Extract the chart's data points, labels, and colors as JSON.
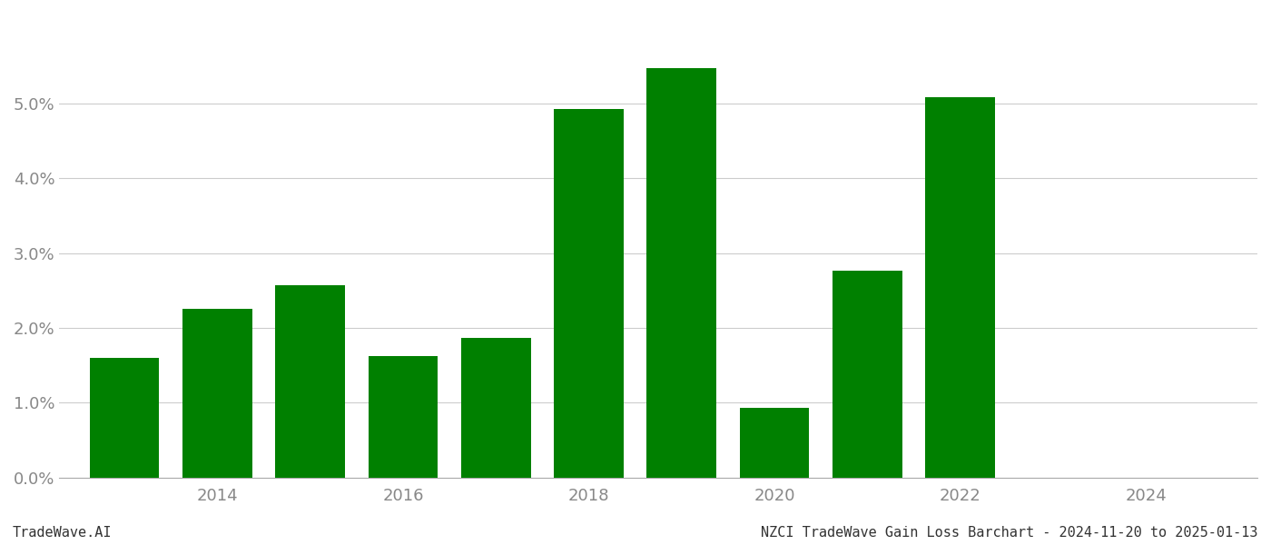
{
  "years": [
    2013,
    2014,
    2015,
    2016,
    2017,
    2018,
    2019,
    2020,
    2021,
    2022
  ],
  "values": [
    0.016,
    0.0225,
    0.0257,
    0.0163,
    0.0187,
    0.0492,
    0.0547,
    0.0093,
    0.0277,
    0.0508
  ],
  "bar_color": "#008000",
  "ylim": [
    0,
    0.062
  ],
  "yticks": [
    0.0,
    0.01,
    0.02,
    0.03,
    0.04,
    0.05
  ],
  "footer_left": "TradeWave.AI",
  "footer_right": "NZCI TradeWave Gain Loss Barchart - 2024-11-20 to 2025-01-13",
  "background_color": "#ffffff",
  "grid_color": "#cccccc",
  "tick_label_color": "#888888",
  "footer_font_size": 11,
  "bar_width": 0.75,
  "xlim_left": 2012.3,
  "xlim_right": 2025.2,
  "xtick_positions": [
    2014,
    2016,
    2018,
    2020,
    2022,
    2024
  ],
  "xtick_labels": [
    "2014",
    "2016",
    "2018",
    "2020",
    "2022",
    "2024"
  ]
}
